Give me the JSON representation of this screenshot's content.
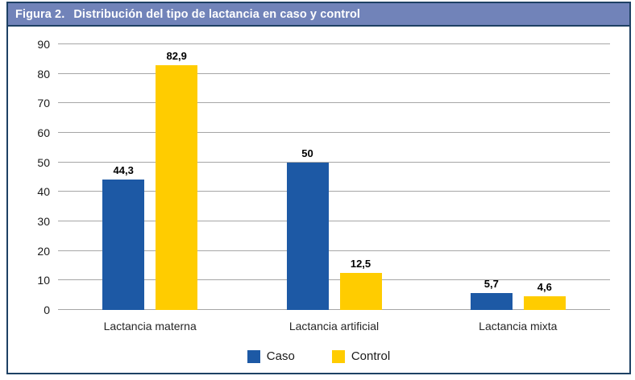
{
  "figure": {
    "label": "Figura 2.",
    "title": "Distribución del tipo de lactancia en caso y control"
  },
  "chart_data": {
    "type": "bar",
    "title": "Distribución del tipo de lactancia en caso y control",
    "categories": [
      "Lactancia materna",
      "Lactancia artificial",
      "Lactancia mixta"
    ],
    "series": [
      {
        "name": "Caso",
        "color": "#1D59A5",
        "values": [
          44.3,
          50,
          5.7
        ],
        "value_labels": [
          "44,3",
          "50",
          "5,7"
        ]
      },
      {
        "name": "Control",
        "color": "#FFCC00",
        "values": [
          82.9,
          12.5,
          4.6
        ],
        "value_labels": [
          "82,9",
          "12,5",
          "4,6"
        ]
      }
    ],
    "xlabel": "",
    "ylabel": "",
    "ylim": [
      0,
      90
    ],
    "yticks": [
      0,
      10,
      20,
      30,
      40,
      50,
      60,
      70,
      80,
      90
    ],
    "grid": true,
    "legend_position": "bottom"
  },
  "colors": {
    "border": "#1E4164",
    "title_bar_bg": "#7183B9",
    "gridline": "#A6A6A6",
    "caso_bar": "#1D59A5",
    "control_bar": "#FFCC00"
  }
}
